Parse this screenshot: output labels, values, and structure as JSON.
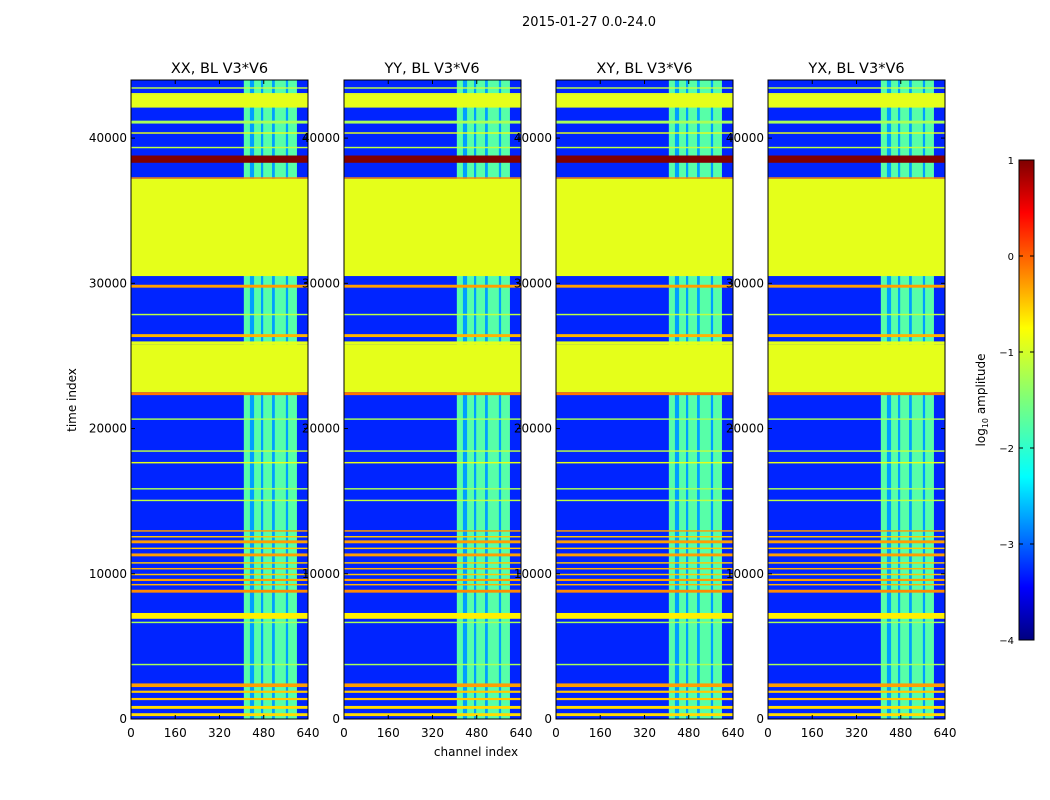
{
  "chart_data": {
    "type": "heatmap",
    "suptitle": "2015-01-27 0.0-24.0",
    "xlabel": "channel index",
    "ylabel": "time index",
    "xlim": [
      0,
      640
    ],
    "ylim": [
      0,
      44000
    ],
    "xticks": [
      "0",
      "160",
      "320",
      "480",
      "640"
    ],
    "yticks": [
      "0",
      "10000",
      "20000",
      "30000",
      "40000"
    ],
    "panels": [
      {
        "title": "XX, BL V3*V6"
      },
      {
        "title": "YY, BL V3*V6"
      },
      {
        "title": "XY, BL V3*V6"
      },
      {
        "title": "YX, BL V3*V6"
      }
    ],
    "colorbar": {
      "label": "log₁₀ amplitude",
      "label_base": "log",
      "label_sub": "10",
      "label_rest": " amplitude",
      "range": [
        -4,
        1
      ],
      "ticks": [
        "1",
        "0",
        "−1",
        "−2",
        "−3",
        "−4"
      ],
      "colormap": "jet"
    },
    "flagged_value": -1.0,
    "background_value": -3.2,
    "rfi_channel_range": [
      408,
      600
    ],
    "flagged_time_ranges": [
      [
        22500,
        25800
      ],
      [
        30500,
        37200
      ],
      [
        42100,
        43000
      ]
    ],
    "strong_rows": [
      [
        38300,
        38800,
        1.0
      ],
      [
        22300,
        22500,
        -0.2
      ],
      [
        37200,
        37300,
        -0.3
      ]
    ],
    "band_rows": [
      [
        200,
        400,
        -0.7
      ],
      [
        700,
        900,
        -0.7
      ],
      [
        1300,
        1450,
        -0.6
      ],
      [
        1800,
        1950,
        -0.6
      ],
      [
        2200,
        2450,
        -0.4
      ],
      [
        3700,
        3800,
        -1.3
      ],
      [
        6600,
        6700,
        -1.3
      ],
      [
        6900,
        7300,
        -0.8
      ],
      [
        8700,
        8900,
        -0.3
      ],
      [
        9200,
        9300,
        -0.5
      ],
      [
        9500,
        9650,
        -0.4
      ],
      [
        9900,
        10000,
        -0.6
      ],
      [
        10300,
        10400,
        -0.5
      ],
      [
        10700,
        10800,
        -0.6
      ],
      [
        11200,
        11400,
        -0.4
      ],
      [
        11700,
        11800,
        -0.6
      ],
      [
        12100,
        12300,
        -0.4
      ],
      [
        12500,
        12600,
        -0.6
      ],
      [
        12900,
        13000,
        -0.4
      ],
      [
        15000,
        15100,
        -1.2
      ],
      [
        15800,
        15900,
        -1.3
      ],
      [
        17600,
        17700,
        -1.0
      ],
      [
        18400,
        18500,
        -1.2
      ],
      [
        20600,
        20700,
        -1.3
      ],
      [
        25800,
        26000,
        -1.0
      ],
      [
        26300,
        26500,
        -0.5
      ],
      [
        27800,
        27900,
        -1.2
      ],
      [
        29700,
        29900,
        -0.4
      ],
      [
        39300,
        39400,
        -1.2
      ],
      [
        40300,
        40400,
        -1.0
      ],
      [
        41000,
        41200,
        -1.3
      ],
      [
        43000,
        43100,
        -1.0
      ],
      [
        43400,
        43500,
        -1.2
      ]
    ]
  }
}
